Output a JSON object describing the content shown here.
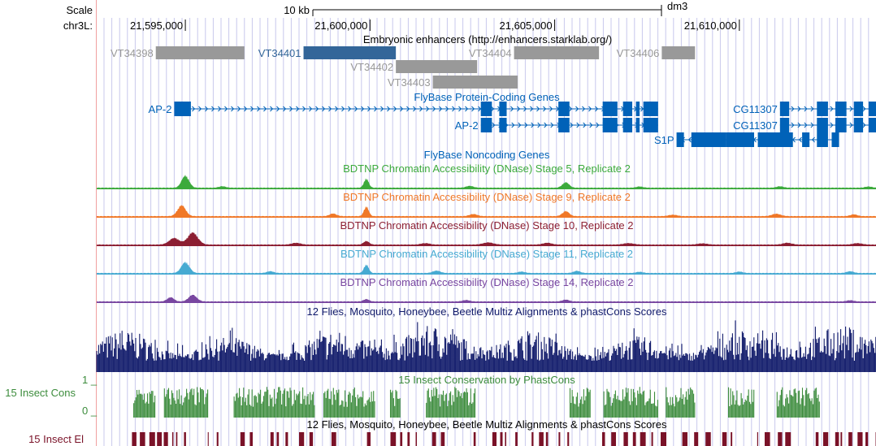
{
  "assembly": "dm3",
  "scale": {
    "label": "Scale",
    "bar_text": "10 kb"
  },
  "chrom_label": "chr3L:",
  "region": {
    "start": 21592600,
    "end": 21613700
  },
  "positions": [
    {
      "pos": 21595000,
      "label": "21,595,000"
    },
    {
      "pos": 21600000,
      "label": "21,600,000"
    },
    {
      "pos": 21605000,
      "label": "21,605,000"
    },
    {
      "pos": 21610000,
      "label": "21,610,000"
    }
  ],
  "colors": {
    "enhancer": "#999999",
    "enhancer_selected": "#336699",
    "gene": "#0062b8",
    "stage5": "#3caa3c",
    "stage9": "#f07828",
    "stage10": "#8c1e32",
    "stage11": "#46aad2",
    "stage14": "#7846a0",
    "multiz": "#101a6a",
    "phastcons": "#3c8c3c",
    "elements": "#7a1228",
    "gridline": "#c8c8ec"
  },
  "tracks": {
    "enhancers": {
      "title": "Embryonic enhancers (http://enhancers.starklab.org/)",
      "items": [
        {
          "name": "VT34398",
          "start": 21594200,
          "end": 21596600,
          "row": 0,
          "selected": false
        },
        {
          "name": "VT34401",
          "start": 21598200,
          "end": 21600700,
          "row": 0,
          "selected": true
        },
        {
          "name": "VT34402",
          "start": 21600700,
          "end": 21602900,
          "row": 1,
          "selected": false
        },
        {
          "name": "VT34403",
          "start": 21601700,
          "end": 21604000,
          "row": 2,
          "selected": false
        },
        {
          "name": "VT34404",
          "start": 21603900,
          "end": 21606200,
          "row": 0,
          "selected": false
        },
        {
          "name": "VT34406",
          "start": 21607900,
          "end": 21608800,
          "row": 0,
          "selected": false
        }
      ]
    },
    "coding_genes": {
      "title": "FlyBase Protein-Coding Genes",
      "transcripts": [
        {
          "name": "AP-2",
          "row": 0,
          "strand": "+",
          "start": 21594700,
          "end": 21607800,
          "exons": [
            [
              21594700,
              21595150
            ],
            [
              21603000,
              21603300
            ],
            [
              21603500,
              21603700
            ],
            [
              21605100,
              21605400
            ],
            [
              21606300,
              21606700
            ],
            [
              21606850,
              21607100
            ],
            [
              21607200,
              21607300
            ],
            [
              21607400,
              21607800
            ]
          ]
        },
        {
          "name": "AP-2",
          "row": 1,
          "strand": "+",
          "start": 21603000,
          "end": 21607800,
          "exons": [
            [
              21603000,
              21603300
            ],
            [
              21603500,
              21603700
            ],
            [
              21605100,
              21605400
            ],
            [
              21606300,
              21606700
            ],
            [
              21606850,
              21607100
            ],
            [
              21607200,
              21607300
            ],
            [
              21607400,
              21607800
            ]
          ]
        },
        {
          "name": "CG11307",
          "row": 0,
          "strand": "+",
          "start": 21611100,
          "end": 21613700,
          "exons": [
            [
              21611100,
              21611350
            ],
            [
              21612100,
              21612400
            ],
            [
              21612600,
              21612900
            ],
            [
              21613100,
              21613350
            ],
            [
              21613500,
              21613700
            ]
          ]
        },
        {
          "name": "CG11307",
          "row": 1,
          "strand": "+",
          "start": 21611100,
          "end": 21613700,
          "exons": [
            [
              21611100,
              21611350
            ],
            [
              21612100,
              21612400
            ],
            [
              21612600,
              21612900
            ],
            [
              21613100,
              21613350
            ],
            [
              21613500,
              21613700
            ]
          ]
        },
        {
          "name": "S1P",
          "row": 2,
          "strand": "-",
          "start": 21608300,
          "end": 21612700,
          "exons": [
            [
              21608300,
              21608500
            ],
            [
              21608700,
              21609650
            ],
            [
              21609650,
              21610400
            ],
            [
              21610500,
              21611450
            ],
            [
              21611700,
              21611900
            ],
            [
              21612100,
              21612400
            ],
            [
              21612500,
              21612700
            ]
          ]
        }
      ]
    },
    "noncoding_genes": {
      "title": "FlyBase Noncoding Genes"
    },
    "dnase": [
      {
        "title": "BDTNP Chromatin Accessibility (DNase) Stage 5, Replicate 2",
        "color_key": "stage5",
        "peaks": [
          [
            21595000,
            1.0,
            220
          ],
          [
            21596000,
            0.12,
            200
          ],
          [
            21599900,
            0.75,
            140
          ],
          [
            21602700,
            0.15,
            220
          ],
          [
            21605300,
            0.45,
            200
          ],
          [
            21607300,
            0.1,
            200
          ],
          [
            21611100,
            0.12,
            200
          ],
          [
            21613500,
            0.1,
            200
          ]
        ]
      },
      {
        "title": "BDTNP Chromatin Accessibility (DNase) Stage 9, Replicate 2",
        "color_key": "stage9",
        "peaks": [
          [
            21594900,
            0.9,
            240
          ],
          [
            21599000,
            0.22,
            200
          ],
          [
            21599900,
            0.8,
            140
          ],
          [
            21602800,
            0.18,
            220
          ],
          [
            21605300,
            0.42,
            200
          ],
          [
            21608200,
            0.12,
            240
          ],
          [
            21611000,
            0.2,
            260
          ],
          [
            21613100,
            0.15,
            200
          ]
        ]
      },
      {
        "title": "BDTNP Chromatin Accessibility (DNase) Stage 10, Replicate 2",
        "color_key": "stage10",
        "peaks": [
          [
            21594700,
            0.55,
            300
          ],
          [
            21595200,
            1.0,
            300
          ],
          [
            21598000,
            0.15,
            250
          ],
          [
            21599900,
            0.3,
            160
          ],
          [
            21601500,
            0.12,
            250
          ],
          [
            21603200,
            0.18,
            300
          ],
          [
            21604800,
            0.15,
            260
          ],
          [
            21607000,
            0.12,
            300
          ],
          [
            21609000,
            0.1,
            280
          ],
          [
            21611300,
            0.15,
            260
          ],
          [
            21613200,
            0.12,
            260
          ]
        ]
      },
      {
        "title": "BDTNP Chromatin Accessibility (DNase) Stage 11, Replicate 2",
        "color_key": "stage11",
        "peaks": [
          [
            21595000,
            0.9,
            240
          ],
          [
            21597300,
            0.15,
            200
          ],
          [
            21599900,
            0.7,
            140
          ],
          [
            21601800,
            0.2,
            220
          ],
          [
            21604100,
            0.12,
            200
          ],
          [
            21605600,
            0.18,
            200
          ],
          [
            21607300,
            0.1,
            200
          ],
          [
            21610000,
            0.12,
            200
          ],
          [
            21613000,
            0.15,
            200
          ]
        ]
      },
      {
        "title": "BDTNP Chromatin Accessibility (DNase) Stage 14, Replicate 2",
        "color_key": "stage14",
        "peaks": [
          [
            21594600,
            0.35,
            200
          ],
          [
            21595200,
            0.55,
            240
          ],
          [
            21599900,
            0.2,
            160
          ],
          [
            21602600,
            0.12,
            200
          ],
          [
            21605300,
            0.15,
            200
          ],
          [
            21613000,
            0.1,
            200
          ]
        ]
      }
    ],
    "multiz": {
      "title": "12 Flies, Mosquito, Honeybee, Beetle Multiz Alignments & phastCons Scores"
    },
    "phastcons": {
      "title": "15 Insect Conservation by PhastCons",
      "side_label": "15 Insect Cons",
      "ymax_label": "1 _",
      "ymin_label": "0 _"
    },
    "elements": {
      "title": "12 Flies, Mosquito, Honeybee, Beetle Multiz Alignments & phastCons Scores",
      "side_label": "15 Insect El"
    }
  }
}
